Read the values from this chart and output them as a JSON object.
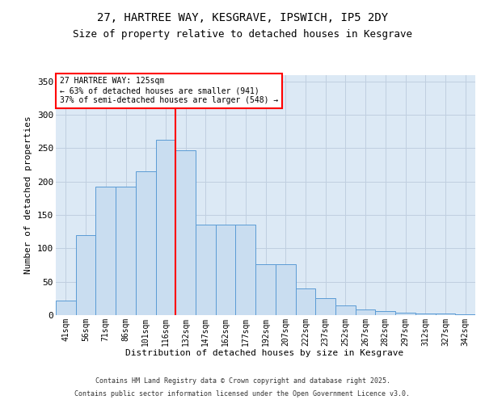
{
  "title": "27, HARTREE WAY, KESGRAVE, IPSWICH, IP5 2DY",
  "subtitle": "Size of property relative to detached houses in Kesgrave",
  "xlabel": "Distribution of detached houses by size in Kesgrave",
  "ylabel": "Number of detached properties",
  "categories": [
    "41sqm",
    "56sqm",
    "71sqm",
    "86sqm",
    "101sqm",
    "116sqm",
    "132sqm",
    "147sqm",
    "162sqm",
    "177sqm",
    "192sqm",
    "207sqm",
    "222sqm",
    "237sqm",
    "252sqm",
    "267sqm",
    "282sqm",
    "297sqm",
    "312sqm",
    "327sqm",
    "342sqm"
  ],
  "values": [
    22,
    120,
    193,
    193,
    215,
    263,
    247,
    136,
    136,
    136,
    76,
    76,
    40,
    25,
    14,
    8,
    6,
    4,
    2,
    2,
    1
  ],
  "bar_color": "#c9ddf0",
  "bar_edge_color": "#5b9bd5",
  "vline_color": "red",
  "annotation_text": "27 HARTREE WAY: 125sqm\n← 63% of detached houses are smaller (941)\n37% of semi-detached houses are larger (548) →",
  "annotation_box_color": "white",
  "annotation_box_edge_color": "red",
  "ylim": [
    0,
    360
  ],
  "yticks": [
    0,
    50,
    100,
    150,
    200,
    250,
    300,
    350
  ],
  "grid_color": "#c0cfe0",
  "background_color": "#dce9f5",
  "footer_line1": "Contains HM Land Registry data © Crown copyright and database right 2025.",
  "footer_line2": "Contains public sector information licensed under the Open Government Licence v3.0.",
  "title_fontsize": 10,
  "subtitle_fontsize": 9,
  "tick_fontsize": 7,
  "ylabel_fontsize": 8,
  "xlabel_fontsize": 8,
  "footer_fontsize": 6
}
